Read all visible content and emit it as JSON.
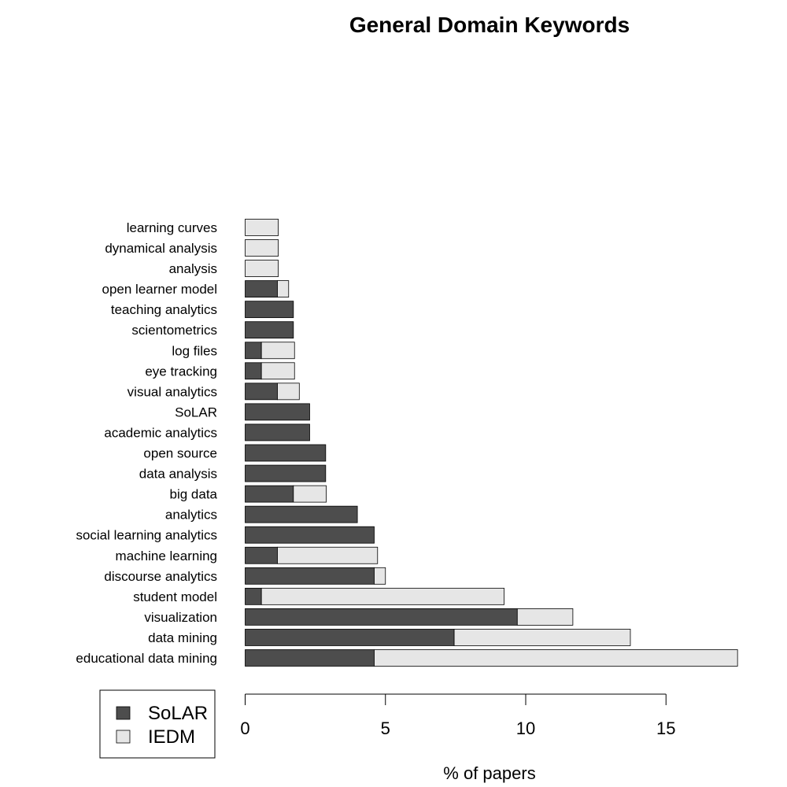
{
  "chart_data": {
    "type": "bar",
    "orientation": "horizontal",
    "stacked": true,
    "title": "General Domain Keywords",
    "xlabel": "% of papers",
    "ylabel": "",
    "xlim": [
      0,
      17.6
    ],
    "xticks": [
      0,
      5,
      10,
      15
    ],
    "grid": false,
    "legend_position": "bottom-left",
    "categories": [
      "educational data mining",
      "data mining",
      "visualization",
      "student model",
      "discourse analytics",
      "machine learning",
      "social learning analytics",
      "analytics",
      "big data",
      "data analysis",
      "open source",
      "academic analytics",
      "SoLAR",
      "visual analytics",
      "eye tracking",
      "log files",
      "scientometrics",
      "teaching analytics",
      "open learner model",
      "analysis",
      "dynamical analysis",
      "learning curves"
    ],
    "series": [
      {
        "name": "SoLAR",
        "color": "#4d4d4d",
        "values": [
          4.6,
          7.45,
          9.7,
          0.58,
          4.6,
          1.15,
          4.6,
          4.0,
          1.72,
          2.87,
          2.87,
          2.3,
          2.3,
          1.15,
          0.58,
          0.58,
          1.72,
          1.72,
          1.15,
          0,
          0,
          0
        ]
      },
      {
        "name": "IEDM",
        "color": "#e6e6e6",
        "values": [
          12.95,
          6.28,
          1.98,
          8.65,
          0.4,
          3.57,
          0,
          0,
          1.17,
          0,
          0,
          0,
          0,
          0.78,
          1.18,
          1.18,
          0,
          0,
          0.4,
          1.18,
          1.18,
          1.18
        ]
      }
    ]
  }
}
